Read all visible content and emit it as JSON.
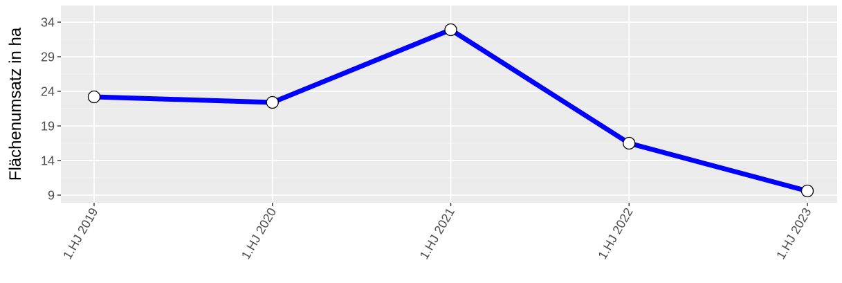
{
  "chart_data": {
    "type": "line",
    "title": "",
    "xlabel": "",
    "ylabel": "Flächenumsatz in ha",
    "categories": [
      "1.HJ 2019",
      "1.HJ 2020",
      "1.HJ 2021",
      "1.HJ 2022",
      "1.HJ 2023"
    ],
    "series": [
      {
        "values": [
          23.2,
          22.4,
          32.9,
          16.5,
          9.6
        ]
      }
    ],
    "y_ticks": [
      9,
      14,
      19,
      24,
      29,
      34
    ],
    "ylim": [
      7.9,
      36.4
    ],
    "grid": true,
    "legend": "none",
    "colors": {
      "line": "#0000ff",
      "point_fill": "#ffffff",
      "point_stroke": "#000000",
      "panel_background": "#ebebeb",
      "grid_major": "#ffffff",
      "tick_label": "#4d4d4d"
    }
  }
}
